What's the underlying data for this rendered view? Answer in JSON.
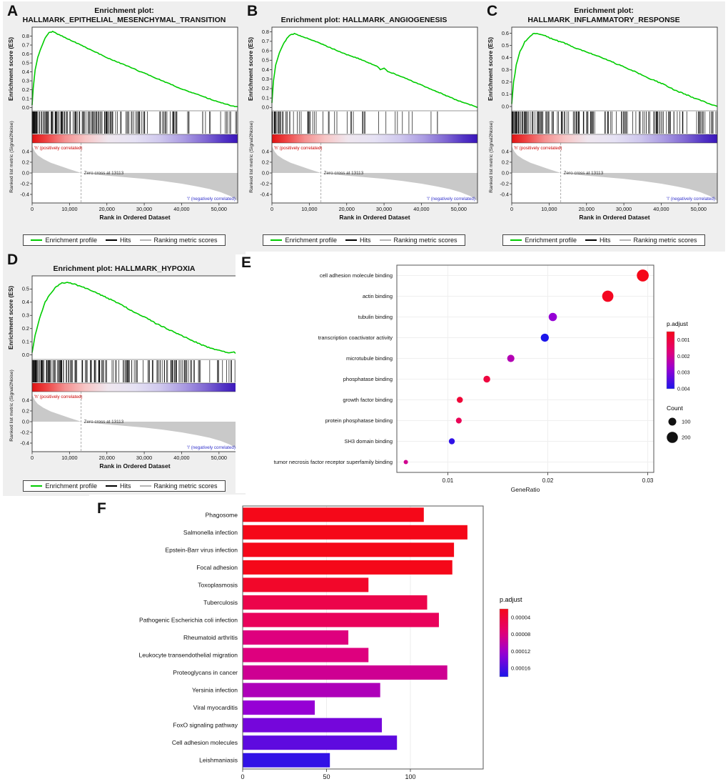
{
  "figure": {
    "background": "#ffffff",
    "gsea_block_bg": "#efefef"
  },
  "gsea_shared": {
    "es_axis_label": "Enrichment score (ES)",
    "rank_axis_label": "Ranked list metric (Signal2Noise)",
    "x_axis_label": "Rank in Ordered Dataset",
    "x_ticks": [
      0,
      10000,
      20000,
      30000,
      40000,
      50000
    ],
    "x_max": 55000,
    "pos_label": "'h' (positively correlated)",
    "neg_label": "'l' (negatively correlated)",
    "zero_cross_label": "Zero cross at 13113",
    "zero_cross_rank": 13113,
    "rank_y_ticks": [
      0.4,
      0.2,
      0.0,
      -0.2,
      -0.4
    ],
    "rank_metric_points": [
      [
        0,
        0.5
      ],
      [
        700,
        0.4
      ],
      [
        1500,
        0.33
      ],
      [
        3000,
        0.26
      ],
      [
        5000,
        0.19
      ],
      [
        7500,
        0.13
      ],
      [
        10000,
        0.07
      ],
      [
        13113,
        0.0
      ],
      [
        16000,
        -0.025
      ],
      [
        20000,
        -0.05
      ],
      [
        25000,
        -0.08
      ],
      [
        30000,
        -0.11
      ],
      [
        35000,
        -0.15
      ],
      [
        40000,
        -0.2
      ],
      [
        44000,
        -0.25
      ],
      [
        47500,
        -0.3
      ],
      [
        50500,
        -0.36
      ],
      [
        53000,
        -0.43
      ],
      [
        55000,
        -0.52
      ]
    ],
    "legend": {
      "profile": "Enrichment profile",
      "hits": "Hits",
      "metric": "Ranking metric scores"
    },
    "colors": {
      "profile": "#00cc00",
      "hits": "#000000",
      "metric": "#b5b5b5",
      "positive": "#cc0000",
      "negative": "#3333cc"
    }
  },
  "chart_data": [
    {
      "id": "A",
      "type": "line",
      "letter": "A",
      "title": "Enrichment plot: HALLMARK_EPITHELIAL_MESENCHYMAL_TRANSITION",
      "es_y_max": 0.8,
      "es_points": [
        [
          0,
          0.03
        ],
        [
          300,
          0.22
        ],
        [
          800,
          0.42
        ],
        [
          1500,
          0.56
        ],
        [
          2500,
          0.68
        ],
        [
          3500,
          0.78
        ],
        [
          4500,
          0.84
        ],
        [
          5500,
          0.85
        ],
        [
          6500,
          0.83
        ],
        [
          8000,
          0.8
        ],
        [
          10000,
          0.76
        ],
        [
          13000,
          0.7
        ],
        [
          16000,
          0.64
        ],
        [
          20000,
          0.56
        ],
        [
          24000,
          0.49
        ],
        [
          28000,
          0.42
        ],
        [
          32000,
          0.35
        ],
        [
          36000,
          0.28
        ],
        [
          40000,
          0.21
        ],
        [
          44000,
          0.15
        ],
        [
          48000,
          0.09
        ],
        [
          51000,
          0.05
        ],
        [
          53500,
          0.02
        ],
        [
          55000,
          0.01
        ]
      ],
      "hits": {
        "seed": 11,
        "count": 200,
        "skew": 2.2
      }
    },
    {
      "id": "B",
      "type": "line",
      "letter": "B",
      "title": "Enrichment plot: HALLMARK_ANGIOGENESIS",
      "es_y_max": 0.8,
      "es_points": [
        [
          0,
          0.05
        ],
        [
          400,
          0.28
        ],
        [
          1000,
          0.45
        ],
        [
          2000,
          0.58
        ],
        [
          3000,
          0.67
        ],
        [
          4000,
          0.73
        ],
        [
          5000,
          0.77
        ],
        [
          6000,
          0.78
        ],
        [
          7500,
          0.76
        ],
        [
          9000,
          0.74
        ],
        [
          11000,
          0.71
        ],
        [
          14000,
          0.66
        ],
        [
          17000,
          0.61
        ],
        [
          20000,
          0.56
        ],
        [
          23000,
          0.52
        ],
        [
          26000,
          0.47
        ],
        [
          28000,
          0.44
        ],
        [
          29000,
          0.4
        ],
        [
          30000,
          0.42
        ],
        [
          31000,
          0.38
        ],
        [
          32500,
          0.36
        ],
        [
          35000,
          0.32
        ],
        [
          38000,
          0.27
        ],
        [
          41000,
          0.22
        ],
        [
          44000,
          0.17
        ],
        [
          47000,
          0.12
        ],
        [
          50000,
          0.07
        ],
        [
          53000,
          0.03
        ],
        [
          55000,
          0.0
        ]
      ],
      "hits": {
        "seed": 22,
        "count": 65,
        "skew": 2.0
      }
    },
    {
      "id": "C",
      "type": "line",
      "letter": "C",
      "title": "Enrichment plot: HALLMARK_INFLAMMATORY_RESPONSE",
      "es_y_max": 0.6,
      "es_points": [
        [
          0,
          0.02
        ],
        [
          500,
          0.2
        ],
        [
          1200,
          0.34
        ],
        [
          2200,
          0.45
        ],
        [
          3500,
          0.53
        ],
        [
          5000,
          0.58
        ],
        [
          6000,
          0.6
        ],
        [
          7500,
          0.59
        ],
        [
          9000,
          0.58
        ],
        [
          11000,
          0.55
        ],
        [
          14000,
          0.52
        ],
        [
          17000,
          0.48
        ],
        [
          20000,
          0.45
        ],
        [
          24000,
          0.4
        ],
        [
          28000,
          0.35
        ],
        [
          32000,
          0.3
        ],
        [
          36000,
          0.24
        ],
        [
          40000,
          0.19
        ],
        [
          44000,
          0.13
        ],
        [
          48000,
          0.08
        ],
        [
          51500,
          0.04
        ],
        [
          54000,
          0.01
        ],
        [
          55000,
          0.0
        ]
      ],
      "hits": {
        "seed": 33,
        "count": 185,
        "skew": 2.0
      }
    },
    {
      "id": "D",
      "type": "line",
      "letter": "D",
      "title": "Enrichment plot: HALLMARK_HYPOXIA",
      "es_y_max": 0.5,
      "es_points": [
        [
          0,
          0.02
        ],
        [
          800,
          0.15
        ],
        [
          2000,
          0.28
        ],
        [
          3500,
          0.4
        ],
        [
          5000,
          0.47
        ],
        [
          6500,
          0.52
        ],
        [
          8000,
          0.545
        ],
        [
          9500,
          0.55
        ],
        [
          11000,
          0.54
        ],
        [
          13000,
          0.52
        ],
        [
          15000,
          0.5
        ],
        [
          18000,
          0.46
        ],
        [
          21000,
          0.42
        ],
        [
          24000,
          0.38
        ],
        [
          27000,
          0.33
        ],
        [
          30000,
          0.29
        ],
        [
          33000,
          0.24
        ],
        [
          36000,
          0.2
        ],
        [
          39000,
          0.16
        ],
        [
          42000,
          0.12
        ],
        [
          45000,
          0.08
        ],
        [
          48000,
          0.05
        ],
        [
          50500,
          0.03
        ],
        [
          52500,
          0.015
        ],
        [
          54000,
          0.02
        ],
        [
          55000,
          0.0
        ]
      ],
      "hits": {
        "seed": 44,
        "count": 190,
        "skew": 1.6
      }
    },
    {
      "id": "E",
      "type": "scatter",
      "letter": "E",
      "xlabel": "GeneRatio",
      "x_ticks": [
        0.01,
        0.02,
        0.03
      ],
      "x_lim": [
        0.0049,
        0.0306
      ],
      "points": [
        {
          "term": "cell adhesion molecule binding",
          "gene_ratio": 0.0295,
          "p_adjust": 0.0005,
          "count": 230
        },
        {
          "term": "actin binding",
          "gene_ratio": 0.026,
          "p_adjust": 0.0006,
          "count": 205
        },
        {
          "term": "tubulin binding",
          "gene_ratio": 0.0205,
          "p_adjust": 0.0028,
          "count": 110
        },
        {
          "term": "transcription coactivator activity",
          "gene_ratio": 0.0197,
          "p_adjust": 0.004,
          "count": 105
        },
        {
          "term": "microtubule binding",
          "gene_ratio": 0.0163,
          "p_adjust": 0.0024,
          "count": 85
        },
        {
          "term": "phosphatase binding",
          "gene_ratio": 0.0139,
          "p_adjust": 0.001,
          "count": 75
        },
        {
          "term": "growth factor binding",
          "gene_ratio": 0.0112,
          "p_adjust": 0.0009,
          "count": 60
        },
        {
          "term": "protein phosphatase binding",
          "gene_ratio": 0.0111,
          "p_adjust": 0.0013,
          "count": 55
        },
        {
          "term": "SH3 domain binding",
          "gene_ratio": 0.0104,
          "p_adjust": 0.0038,
          "count": 58
        },
        {
          "term": "tumor necrosis factor receptor superfamily binding",
          "gene_ratio": 0.0058,
          "p_adjust": 0.002,
          "count": 30
        }
      ],
      "legend": {
        "p_title": "p.adjust",
        "p_ticks": [
          0.001,
          0.002,
          0.003,
          0.004
        ],
        "p_domain": [
          0.0005,
          0.004
        ],
        "count_title": "Count",
        "count_ticks": [
          100,
          200
        ]
      }
    },
    {
      "id": "F",
      "type": "bar",
      "letter": "F",
      "categories": [
        "Phagosome",
        "Salmonella infection",
        "Epstein-Barr virus infection",
        "Focal adhesion",
        "Toxoplasmosis",
        "Tuberculosis",
        "Pathogenic Escherichia coli infection",
        "Rheumatoid arthritis",
        "Leukocyte transendothelial migration",
        "Proteoglycans in cancer",
        "Yersinia infection",
        "Viral myocarditis",
        "FoxO signaling pathway",
        "Cell adhesion molecules",
        "Leishmaniasis"
      ],
      "values": [
        108,
        134,
        126,
        125,
        75,
        110,
        117,
        63,
        75,
        122,
        82,
        43,
        83,
        92,
        52
      ],
      "p_adjust": [
        1e-05,
        1e-05,
        2e-05,
        2e-05,
        3e-05,
        5e-05,
        6e-05,
        8e-05,
        8e-05,
        9e-05,
        0.00011,
        0.000125,
        0.00014,
        0.00015,
        0.00017
      ],
      "x_ticks": [
        0,
        50,
        100
      ],
      "legend": {
        "p_title": "p.adjust",
        "p_ticks": [
          4e-05,
          8e-05,
          0.00012,
          0.00016
        ],
        "p_domain": [
          2e-05,
          0.00018
        ]
      }
    }
  ]
}
